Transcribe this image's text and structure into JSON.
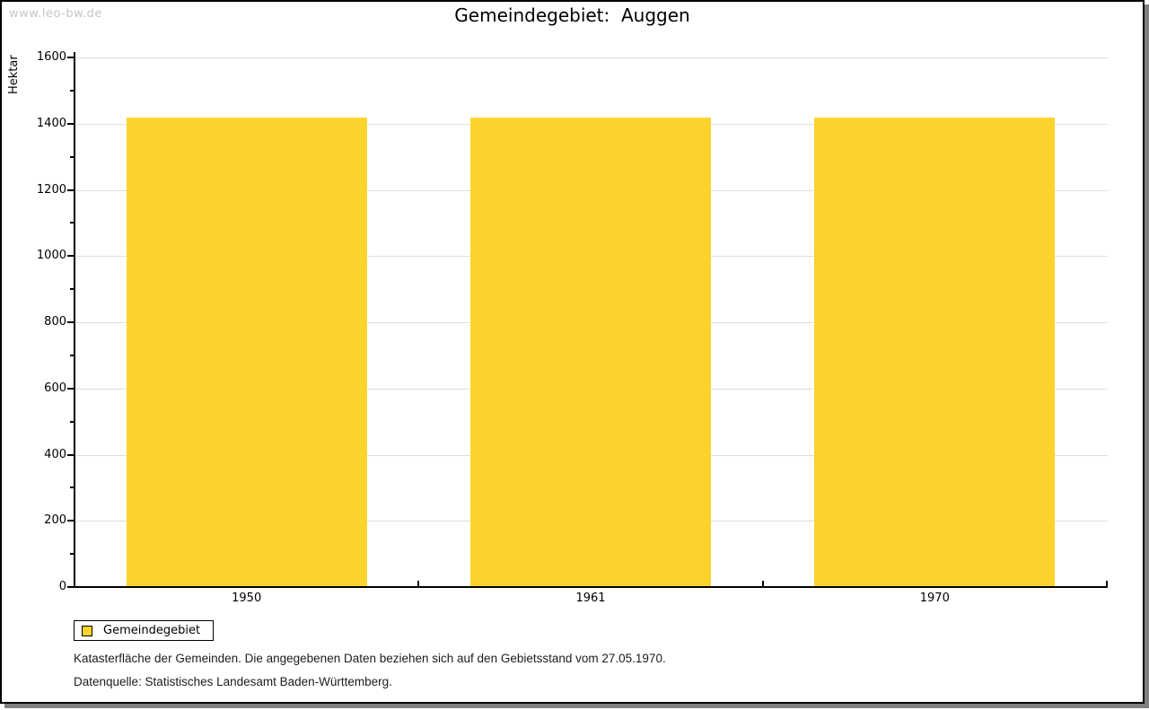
{
  "watermark": {
    "text": "www.leo-bw.de"
  },
  "chart_data": {
    "type": "bar",
    "title": "Gemeindegebiet:  Auggen",
    "xlabel": "",
    "ylabel": "Hektar",
    "categories": [
      "1950",
      "1961",
      "1970"
    ],
    "series": [
      {
        "name": "Gemeindegebiet",
        "values": [
          1418,
          1418,
          1418
        ]
      }
    ],
    "ylim": [
      0,
      1600
    ],
    "ytick_step": 200,
    "yminor_step": 100,
    "grid": true,
    "legend_position": "bottom-left",
    "bar_color": "#FCD32D"
  },
  "legend": {
    "items": [
      {
        "label": "Gemeindegebiet",
        "color": "#FCD32D"
      }
    ]
  },
  "footnotes": {
    "line1": "Katasterfläche der Gemeinden. Die angegebenen Daten beziehen sich auf den Gebietsstand vom 27.05.1970.",
    "line2": "Datenquelle: Statistisches Landesamt Baden-Württemberg."
  },
  "colors": {
    "bar": "#FCD32D",
    "grid": "#dedede",
    "axis": "#000000",
    "watermark": "#c6c6c6",
    "shadow": "#7f7f7f",
    "background": "#ffffff"
  }
}
